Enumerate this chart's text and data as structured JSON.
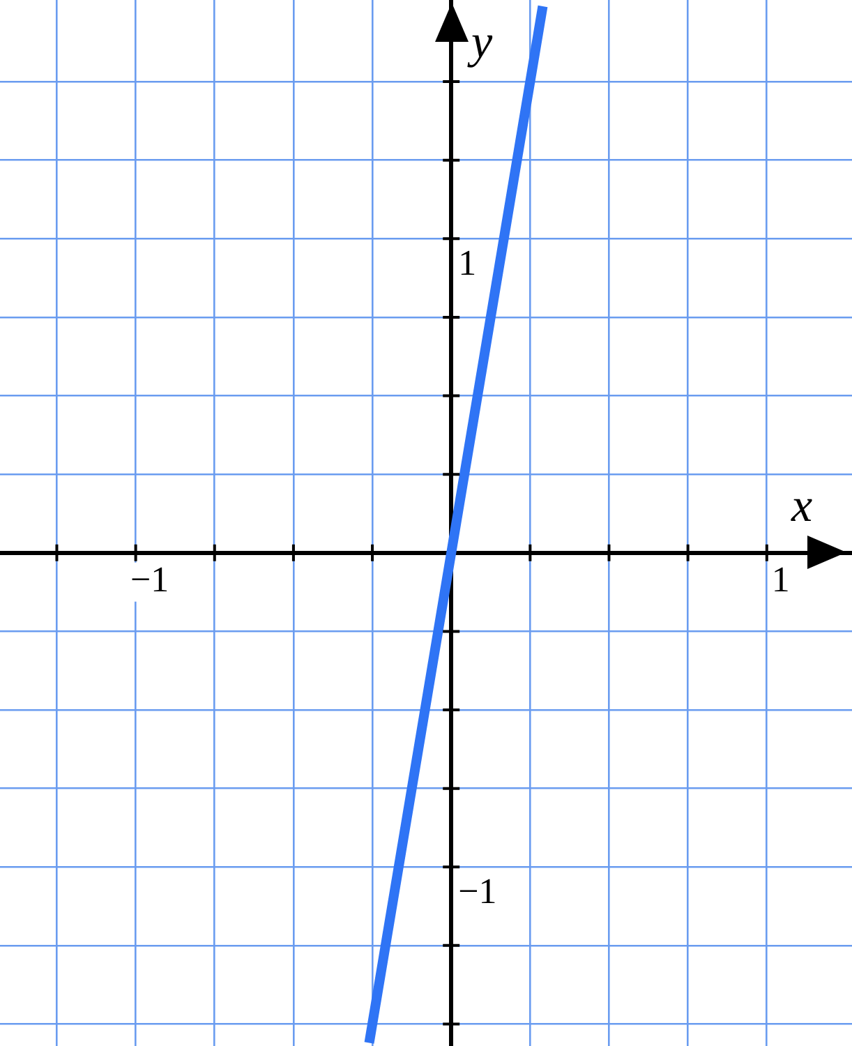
{
  "chart_data": {
    "type": "line",
    "xlabel": "x",
    "ylabel": "y",
    "xlim": [
      -1.43,
      1.27
    ],
    "ylim": [
      -1.57,
      1.76
    ],
    "xticks": [
      {
        "value": -1.25,
        "label": null
      },
      {
        "value": -1,
        "label": "−1"
      },
      {
        "value": -0.75,
        "label": null
      },
      {
        "value": -0.5,
        "label": null
      },
      {
        "value": -0.25,
        "label": null
      },
      {
        "value": 0.25,
        "label": null
      },
      {
        "value": 0.5,
        "label": null
      },
      {
        "value": 0.75,
        "label": null
      },
      1
    ],
    "yticks": [
      {
        "value": -1.5,
        "label": null
      },
      {
        "value": -1.25,
        "label": null
      },
      {
        "value": -1,
        "label": "−1"
      },
      {
        "value": -0.75,
        "label": null
      },
      {
        "value": -0.5,
        "label": null
      },
      {
        "value": -0.25,
        "label": null
      },
      {
        "value": 0.25,
        "label": null
      },
      {
        "value": 0.5,
        "label": null
      },
      {
        "value": 0.75,
        "label": null
      },
      1,
      {
        "value": 1.25,
        "label": null
      },
      {
        "value": 1.5,
        "label": null
      }
    ],
    "grid": true,
    "legend": false,
    "marker": "none",
    "line_style": "solid",
    "series": [
      {
        "x": [
          -0.26,
          0.29
        ],
        "values": [
          -1.56,
          1.74
        ],
        "color": "#2f74f5"
      }
    ]
  }
}
